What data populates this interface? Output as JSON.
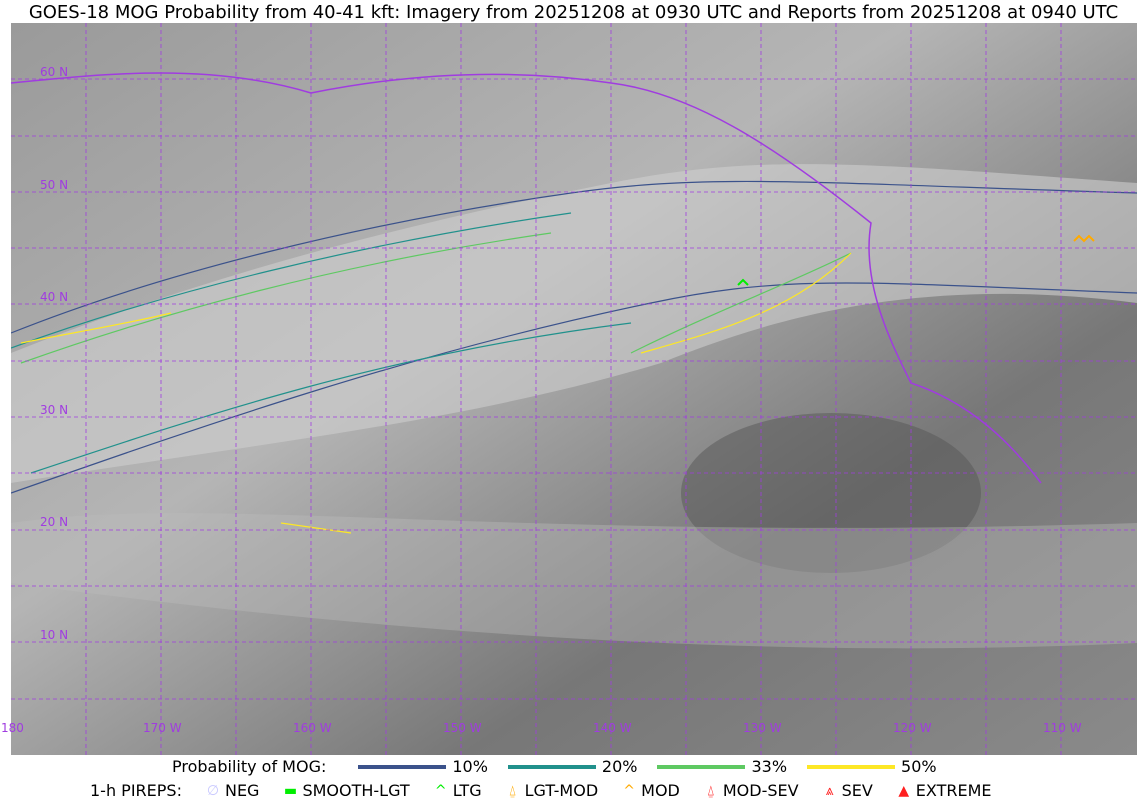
{
  "title": "GOES-18 MOG Probability from 40-41 kft: Imagery from 20251208 at 0930 UTC and Reports from 20251208 at 0940 UTC",
  "map": {
    "lat_labels": [
      "60 N",
      "50 N",
      "40 N",
      "30 N",
      "20 N",
      "10 N"
    ],
    "lon_labels": [
      "180",
      "170 W",
      "160 W",
      "150 W",
      "140 W",
      "130 W",
      "120 W",
      "110 W"
    ],
    "grid_color": "#a03ce0",
    "coast_color": "#a03ce0"
  },
  "legend": {
    "prob_title": "Probability of MOG:",
    "prob_levels": [
      {
        "label": "10%",
        "color": "#3b528b"
      },
      {
        "label": "20%",
        "color": "#21918c"
      },
      {
        "label": "33%",
        "color": "#5ec962"
      },
      {
        "label": "50%",
        "color": "#fde725"
      }
    ],
    "pirep_title": "1-h PIREPS:",
    "pireps": [
      {
        "label": "NEG",
        "color": "#c8c8ff",
        "icon": "neg-icon"
      },
      {
        "label": "SMOOTH-LGT",
        "color": "#00ee00",
        "icon": "smooth-lgt-icon"
      },
      {
        "label": "LTG",
        "color": "#00ee00",
        "icon": "ltg-icon"
      },
      {
        "label": "LGT-MOD",
        "color": "#ffaa00",
        "icon": "lgt-mod-icon"
      },
      {
        "label": "MOD",
        "color": "#ffaa00",
        "icon": "mod-icon"
      },
      {
        "label": "MOD-SEV",
        "color": "#ff2020",
        "icon": "mod-sev-icon"
      },
      {
        "label": "SEV",
        "color": "#ff2020",
        "icon": "sev-icon"
      },
      {
        "label": "EXTREME",
        "color": "#ff2020",
        "icon": "extreme-icon"
      }
    ]
  }
}
